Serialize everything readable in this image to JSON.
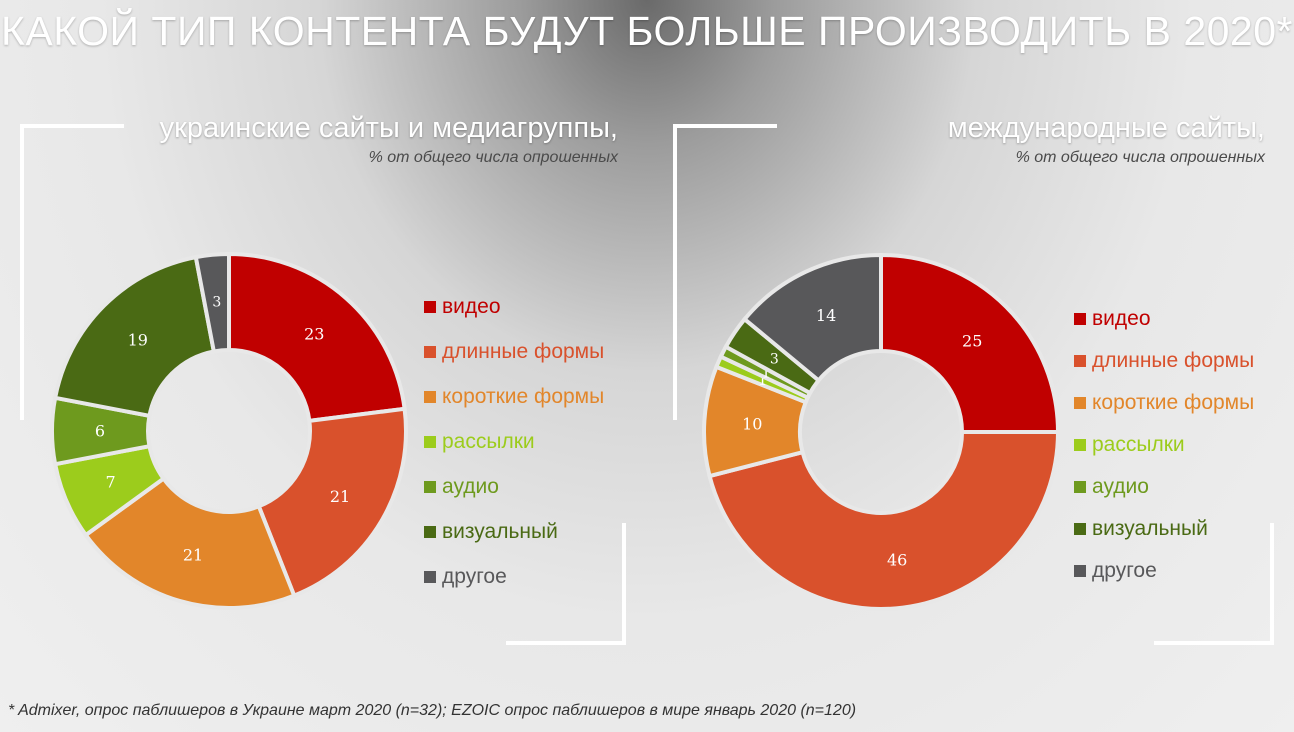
{
  "title": "КАКОЙ ТИП КОНТЕНТА БУДУТ БОЛЬШЕ ПРОИЗВОДИТЬ В 2020*",
  "footnote": "* Admixer, опрос паблишеров в Украине март 2020 (n=32); EZOIC опрос паблишеров в мире январь 2020 (n=120)",
  "chart_data": [
    {
      "type": "pie",
      "title": "украинские сайты и медиагруппы,",
      "subtitle": "% от общего числа опрошенных",
      "legend_position": "right",
      "categories": [
        "видео",
        "длинные формы",
        "короткие формы",
        "рассылки",
        "аудио",
        "визуальный",
        "другое"
      ],
      "values": [
        23,
        21,
        21,
        7,
        6,
        19,
        3
      ],
      "colors": [
        "#c00000",
        "#d9512c",
        "#e2862a",
        "#9ccc1c",
        "#6e9a1e",
        "#4a6a14",
        "#58585a"
      ],
      "label_colors": [
        "#c00000",
        "#d9512c",
        "#e2862a",
        "#9ccc1c",
        "#6e9a1e",
        "#4a6a14",
        "#58585a"
      ]
    },
    {
      "type": "pie",
      "title": "международные сайты,",
      "subtitle": "% от общего числа опрошенных",
      "legend_position": "right",
      "categories": [
        "видео",
        "длинные формы",
        "короткие формы",
        "рассылки",
        "аудио",
        "визуальный",
        "другое"
      ],
      "values": [
        25,
        46,
        10,
        1,
        1,
        3,
        14
      ],
      "colors": [
        "#c00000",
        "#d9512c",
        "#e2862a",
        "#9ccc1c",
        "#6e9a1e",
        "#4a6a14",
        "#58585a"
      ],
      "label_colors": [
        "#c00000",
        "#d9512c",
        "#e2862a",
        "#9ccc1c",
        "#6e9a1e",
        "#4a6a14",
        "#58585a"
      ]
    }
  ]
}
